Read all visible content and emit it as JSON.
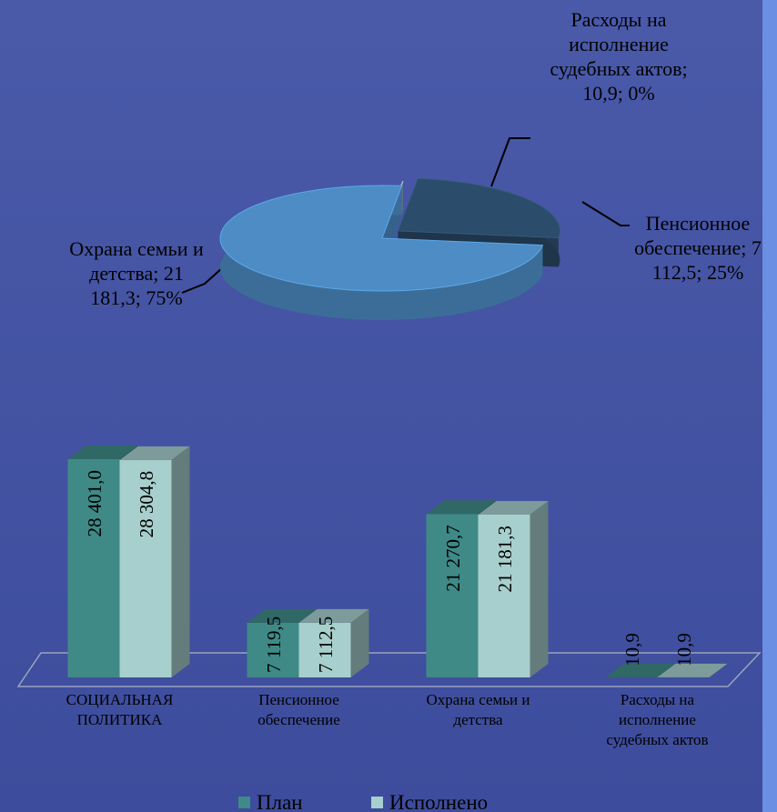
{
  "chart_data": [
    {
      "type": "pie",
      "categories": [
        "Расходы на исполнение судебных актов",
        "Пенсионное обеспечение",
        "Охрана семьи и детства"
      ],
      "values": [
        10.9,
        7112.5,
        21181.3
      ],
      "value_labels": [
        "Расходы на исполнение судебных актов; 10,9; 0%",
        "Пенсионное обеспечение; 7 112,5; 25%",
        "Охрана семьи и детства; 21 181,3; 75%"
      ],
      "colors": [
        "#8a9aa8",
        "#2b4c6a",
        "#4d8cc4"
      ]
    },
    {
      "type": "bar",
      "categories": [
        "СОЦИАЛЬНАЯ ПОЛИТИКА",
        "Пенсионное обеспечение",
        "Охрана семьи и детства",
        "Расходы на исполнение судебных актов"
      ],
      "series": [
        {
          "name": "План",
          "color": "#3f8a87",
          "values": [
            28401.0,
            7119.5,
            21270.7,
            10.9
          ],
          "value_labels": [
            "28 401,0",
            "7 119,5",
            "21 270,7",
            "10,9"
          ]
        },
        {
          "name": "Исполнено",
          "color": "#a7cfcd",
          "values": [
            28304.8,
            7112.5,
            21181.3,
            10.9
          ],
          "value_labels": [
            "28 304,8",
            "7 112,5",
            "21 181,3",
            "10,9"
          ]
        }
      ],
      "legend": "bottom"
    }
  ]
}
